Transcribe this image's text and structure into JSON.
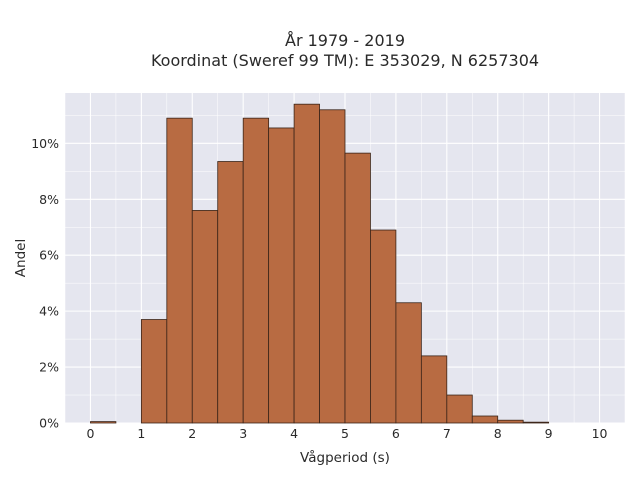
{
  "chart_data": {
    "type": "bar",
    "title_line1": "År 1979 - 2019",
    "title_line2": "Koordinat (Sweref 99 TM): E 353029, N 6257304",
    "xlabel": "Vågperiod (s)",
    "ylabel": "Andel",
    "xlim": [
      -0.5,
      10.5
    ],
    "ylim": [
      0,
      11.8
    ],
    "bin_width": 0.5,
    "bins": [
      {
        "x0": 0.0,
        "value": 0.05
      },
      {
        "x0": 1.0,
        "value": 3.7
      },
      {
        "x0": 1.5,
        "value": 10.9
      },
      {
        "x0": 2.0,
        "value": 7.6
      },
      {
        "x0": 2.5,
        "value": 9.35
      },
      {
        "x0": 3.0,
        "value": 10.9
      },
      {
        "x0": 3.5,
        "value": 10.55
      },
      {
        "x0": 4.0,
        "value": 11.4
      },
      {
        "x0": 4.5,
        "value": 11.2
      },
      {
        "x0": 5.0,
        "value": 9.65
      },
      {
        "x0": 5.5,
        "value": 6.9
      },
      {
        "x0": 6.0,
        "value": 4.3
      },
      {
        "x0": 6.5,
        "value": 2.4
      },
      {
        "x0": 7.0,
        "value": 1.0
      },
      {
        "x0": 7.5,
        "value": 0.25
      },
      {
        "x0": 8.0,
        "value": 0.1
      },
      {
        "x0": 8.5,
        "value": 0.03
      }
    ],
    "x_ticks": [
      0,
      1,
      2,
      3,
      4,
      5,
      6,
      7,
      8,
      9,
      10
    ],
    "y_ticks": [
      0,
      2,
      4,
      6,
      8,
      10
    ],
    "y_tick_suffix": "%",
    "colors": {
      "bar_fill": "#b86b42",
      "bar_edge": "#3a2418",
      "plot_bg": "#e5e6ef",
      "grid": "#ffffff"
    },
    "grid": true
  }
}
